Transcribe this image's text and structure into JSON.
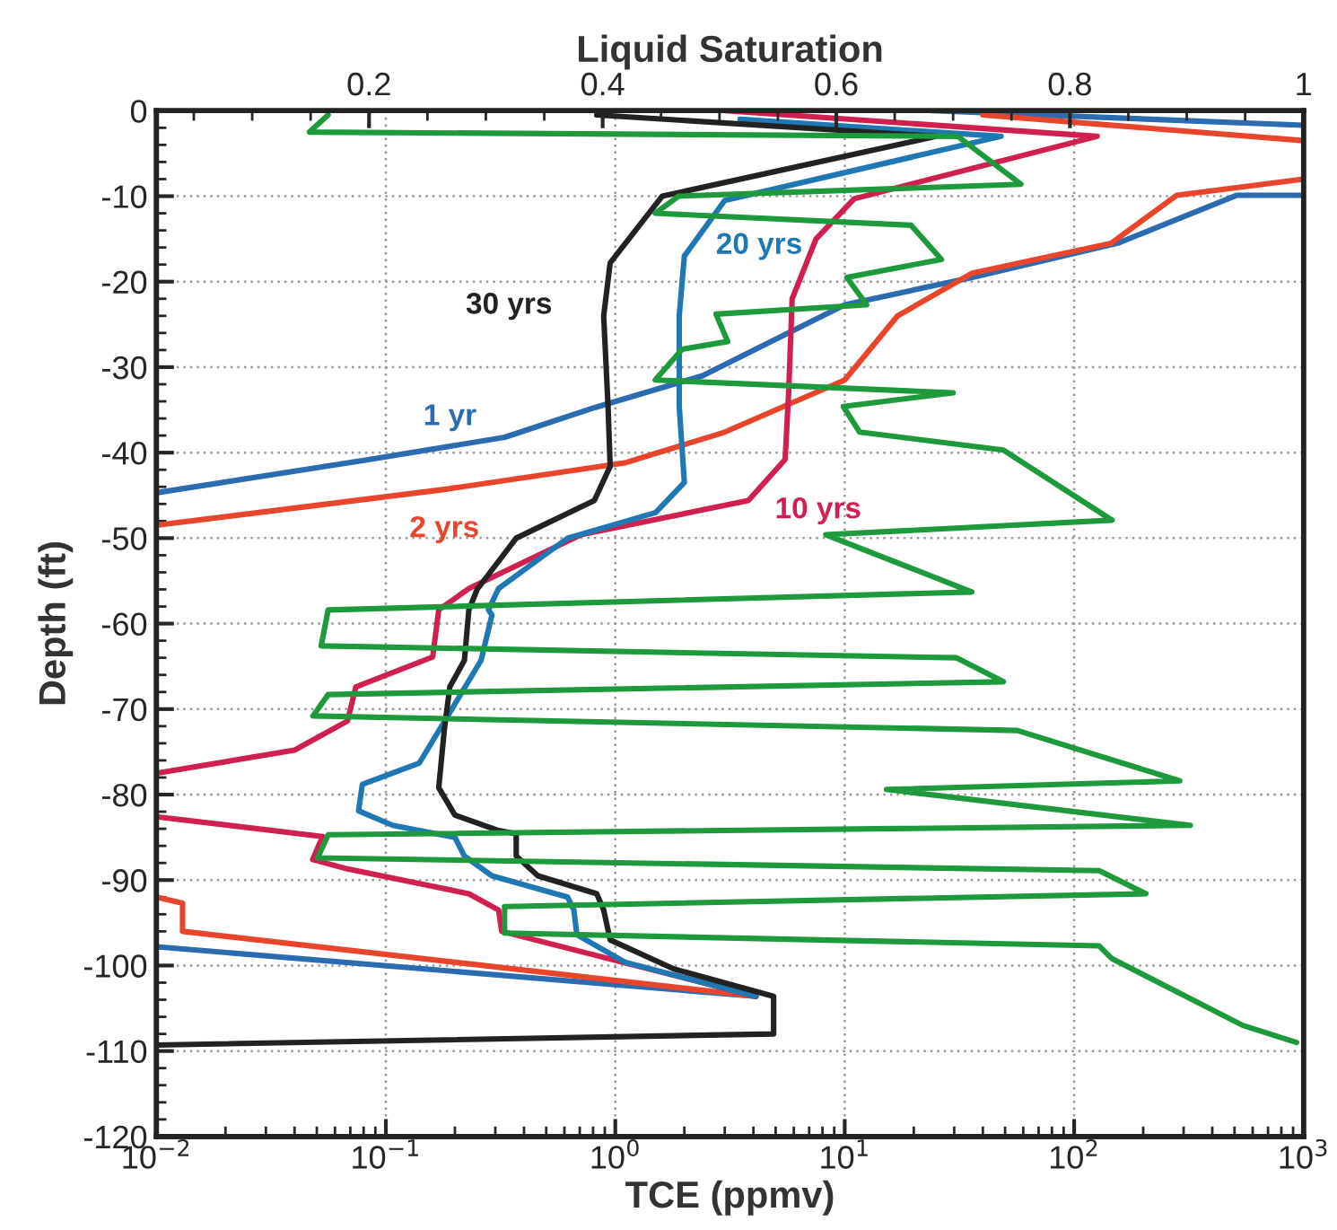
{
  "chart_data": {
    "type": "line",
    "xlabel": "TCE (ppmv)",
    "ylabel": "Depth (ft)",
    "x2label": "Liquid Saturation",
    "log": "x",
    "grid": true,
    "line_style": "solid",
    "xlim": [
      0.01,
      1000
    ],
    "xticks": [
      {
        "value": 0.01,
        "label": "10$^{−2}$"
      },
      {
        "value": 0.1,
        "label": "10$^{−1}$"
      },
      {
        "value": 1,
        "label": "10$^{0}$"
      },
      {
        "value": 10,
        "label": "10$^{1}$"
      },
      {
        "value": 100,
        "label": "10$^{2}$"
      },
      {
        "value": 1000,
        "label": "10$^{3}$"
      }
    ],
    "ylim": [
      -120,
      0
    ],
    "yticks": [
      -120,
      -110,
      -100,
      -90,
      -80,
      -70,
      -60,
      -50,
      -40,
      -30,
      -20,
      -10,
      0
    ],
    "x2lim": [
      0.018,
      1
    ],
    "x2ticks": [
      0.2,
      0.4,
      0.6,
      0.8,
      1
    ],
    "series": [
      {
        "name": "1 yr",
        "color": "#2b6cb0",
        "x": [
          24,
          1000,
          null,
          1000,
          510,
          155,
          36,
          10,
          2.4,
          0.82,
          0.33,
          0.085,
          0.01,
          null,
          0.01,
          4.1
        ],
        "values": [
          0,
          -1.7,
          null,
          -9.9,
          -9.9,
          -15.5,
          -19.5,
          -22.7,
          -31,
          -34.7,
          -38.2,
          -40.8,
          -44.7,
          null,
          -97.8,
          -103.6
        ]
      },
      {
        "name": "2 yrs",
        "color": "#e8452c",
        "x": [
          40,
          1000,
          null,
          1000,
          280,
          145,
          36,
          17,
          10,
          3.0,
          1.1,
          0.18,
          0.01,
          null,
          0.01,
          0.013,
          0.013,
          4.1
        ],
        "values": [
          -0.5,
          -3.5,
          null,
          -8,
          -9.9,
          -15.5,
          -19,
          -24,
          -31.5,
          -37.6,
          -41.2,
          -44.3,
          -48.5,
          null,
          -92,
          -92.7,
          -96,
          -103.6
        ]
      },
      {
        "name": "10 yrs",
        "color": "#d02050",
        "x": [
          3,
          126,
          11,
          7.5,
          5.9,
          5.7,
          5.5,
          3.8,
          0.71,
          0.23,
          0.17,
          0.16,
          0.074,
          0.068,
          0.04,
          0.01,
          null,
          0.01,
          0.053,
          0.048,
          0.068,
          0.23,
          0.31,
          0.32,
          4.1
        ],
        "values": [
          0,
          -3,
          -10.3,
          -15,
          -22,
          -32.8,
          -40.8,
          -45.6,
          -49.6,
          -55.9,
          -58.4,
          -63.9,
          -67.4,
          -71.4,
          -74.8,
          -77.5,
          null,
          -82.6,
          -84.9,
          -87.6,
          -88.7,
          -91.6,
          -93.5,
          -96,
          -103.6
        ]
      },
      {
        "name": "20 yrs",
        "color": "#1f78b4",
        "x": [
          3.5,
          48,
          3.0,
          2.0,
          1.9,
          1.9,
          2.0,
          1.5,
          0.62,
          0.31,
          0.28,
          0.29,
          0.26,
          0.19,
          0.14,
          0.079,
          0.076,
          0.107,
          0.2,
          0.22,
          0.29,
          0.62,
          0.66,
          0.68,
          1.1,
          4.1
        ],
        "values": [
          -1,
          -3,
          -10.5,
          -17,
          -24,
          -34.6,
          -43.5,
          -47,
          -50,
          -55.9,
          -58.4,
          -59,
          -64.3,
          -70.4,
          -76.3,
          -78.8,
          -81.9,
          -83.6,
          -85,
          -87.2,
          -89.5,
          -92,
          -93.5,
          -96.4,
          -99.6,
          -103.6
        ]
      },
      {
        "name": "30 yrs",
        "color": "#222222",
        "x": [
          0.83,
          25,
          1.6,
          0.95,
          0.89,
          0.93,
          0.95,
          0.81,
          0.37,
          0.25,
          0.23,
          0.22,
          0.19,
          0.18,
          0.17,
          0.2,
          0.31,
          0.37,
          0.37,
          0.46,
          0.83,
          0.89,
          0.95,
          1.8,
          4.9,
          4.9,
          0.01
        ],
        "values": [
          -0.5,
          -3,
          -10,
          -17.8,
          -24,
          -34.6,
          -41.6,
          -45.6,
          -50,
          -56,
          -58.4,
          -64.3,
          -67.4,
          -72.3,
          -79.2,
          -82.4,
          -84.2,
          -84.6,
          -87.2,
          -89.5,
          -91.6,
          -93.5,
          -97,
          -100.4,
          -103.6,
          -108,
          -109.3
        ]
      },
      {
        "color": "#1e9a3c",
        "axis": "x2",
        "x": [
          0.165,
          0.149,
          0.704,
          0.758,
          0.465,
          0.445,
          0.664,
          0.69,
          0.609,
          0.626,
          0.497,
          0.507,
          0.468,
          0.445,
          0.7,
          0.606,
          0.62,
          0.743,
          0.836,
          0.591,
          0.716,
          0.165,
          0.159,
          0.703,
          0.743,
          0.165,
          0.152,
          0.755,
          0.894,
          0.643,
          0.903,
          0.165,
          0.156,
          0.825,
          0.865,
          0.316,
          0.316,
          0.825,
          0.836,
          0.948,
          0.994
        ],
        "values": [
          -0.5,
          -2.5,
          -3,
          -8.6,
          -10,
          -12,
          -13.4,
          -17.4,
          -19.5,
          -22.7,
          -23.8,
          -27,
          -27.9,
          -31.5,
          -33,
          -34.6,
          -37.6,
          -39.7,
          -47.9,
          -49.6,
          -56.3,
          -58.4,
          -62.6,
          -64,
          -66.8,
          -68.3,
          -70.8,
          -72.5,
          -78.4,
          -79.4,
          -83.6,
          -84.7,
          -87.4,
          -88.9,
          -91.6,
          -93.1,
          -96.2,
          -97.7,
          -99.2,
          -107,
          -109
        ]
      }
    ]
  }
}
